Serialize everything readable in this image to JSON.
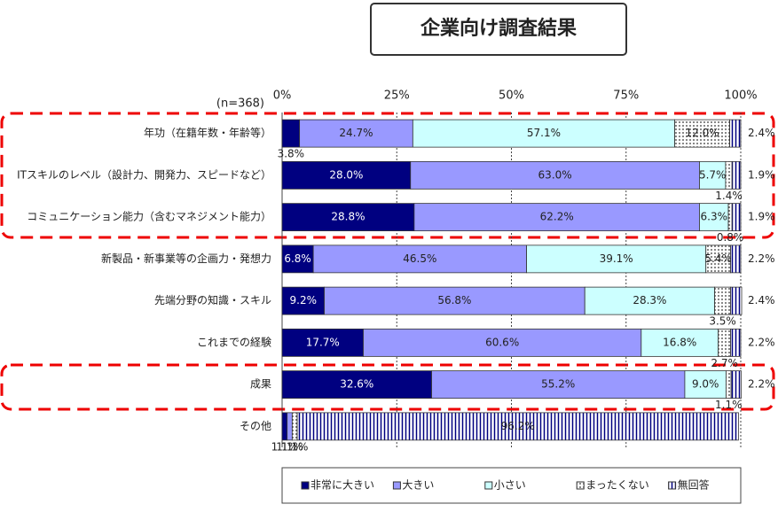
{
  "header": {
    "title": "企業向け調査結果"
  },
  "chart_data": {
    "type": "stacked-bar-horizontal",
    "sample_note": "(n=368)",
    "categories": [
      "年功（在籍年数・年齢等）",
      "ITスキルのレベル（設計力、開発力、スピードなど）",
      "コミュニケーション能力（含むマネジメント能力）",
      "新製品・新事業等の企画力・発想力",
      "先端分野の知識・スキル",
      "これまでの経験",
      "成果",
      "その他"
    ],
    "xlim": [
      0,
      100
    ],
    "xticks": [
      {
        "value": 0,
        "label": "0%"
      },
      {
        "value": 25,
        "label": "25%"
      },
      {
        "value": 50,
        "label": "50%"
      },
      {
        "value": 75,
        "label": "75%"
      },
      {
        "value": 100,
        "label": "100%"
      }
    ],
    "grid": true,
    "legend": "bottom",
    "series": [
      {
        "name": "非常に大きい",
        "color": "#000080",
        "values": [
          3.8,
          28.0,
          28.8,
          6.8,
          9.2,
          17.7,
          32.6,
          1.1
        ],
        "value_labels": [
          "3.8%",
          "28.0%",
          "28.8%",
          "6.8%",
          "9.2%",
          "17.7%",
          "32.6%",
          "1.1%"
        ]
      },
      {
        "name": "大きい",
        "color": "#9999ff",
        "values": [
          24.7,
          63.0,
          62.2,
          46.5,
          56.8,
          60.6,
          55.2,
          1.1
        ],
        "value_labels": [
          "24.7%",
          "63.0%",
          "62.2%",
          "46.5%",
          "56.8%",
          "60.6%",
          "55.2%",
          "1.1%"
        ]
      },
      {
        "name": "小さい",
        "color": "#ccffff",
        "values": [
          57.1,
          5.7,
          6.3,
          39.1,
          28.3,
          16.8,
          9.0,
          0
        ],
        "value_labels": [
          "57.1%",
          "5.7%",
          "6.3%",
          "39.1%",
          "28.3%",
          "16.8%",
          "9.0%",
          null
        ]
      },
      {
        "name": "まったくない",
        "color": "#ffffff",
        "pattern": "dots",
        "values": [
          12.0,
          1.4,
          0.8,
          5.4,
          3.5,
          2.7,
          1.1,
          1.1
        ],
        "value_labels": [
          "12.0%",
          "1.4%",
          "0.8%",
          "5.4%",
          "3.5%",
          "2.7%",
          "1.1%",
          "1.1%"
        ]
      },
      {
        "name": "無回答",
        "color": "#ffffff",
        "pattern": "vertical-lines",
        "values": [
          2.4,
          1.9,
          1.9,
          2.2,
          2.4,
          2.2,
          2.2,
          96.2
        ],
        "value_labels": [
          "2.4%",
          "1.9%",
          "1.9%",
          "2.2%",
          "2.4%",
          "2.2%",
          "2.2%",
          "96.2%"
        ]
      }
    ]
  }
}
